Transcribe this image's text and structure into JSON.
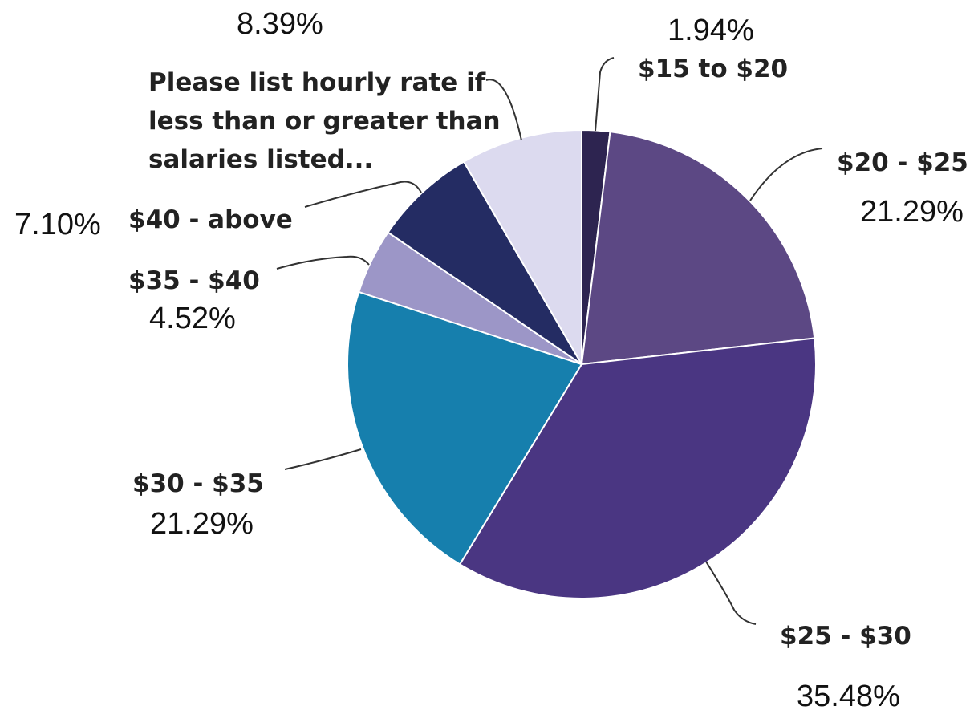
{
  "chart_data": {
    "type": "pie",
    "title": "",
    "slices": [
      {
        "label": "$15 to $20",
        "value": 1.94,
        "percent_label": "1.94%",
        "color": "#2d2450"
      },
      {
        "label": "$20 - $25",
        "value": 21.29,
        "percent_label": "21.29%",
        "color": "#5c4884"
      },
      {
        "label": "$25 - $30",
        "value": 35.48,
        "percent_label": "35.48%",
        "color": "#4a3682"
      },
      {
        "label": "$30 - $35",
        "value": 21.29,
        "percent_label": "21.29%",
        "color": "#167fad"
      },
      {
        "label": "$35 - $40",
        "value": 4.52,
        "percent_label": "4.52%",
        "color": "#9c96c7"
      },
      {
        "label": "$40 - above",
        "value": 7.1,
        "percent_label": "7.10%",
        "color": "#242c63"
      },
      {
        "label_lines": [
          "Please list hourly rate if",
          "less than or greater than",
          "salaries listed..."
        ],
        "label": "Please list hourly rate if less than or greater than salaries listed...",
        "value": 8.39,
        "percent_label": "8.39%",
        "color": "#dcdaef"
      }
    ]
  }
}
